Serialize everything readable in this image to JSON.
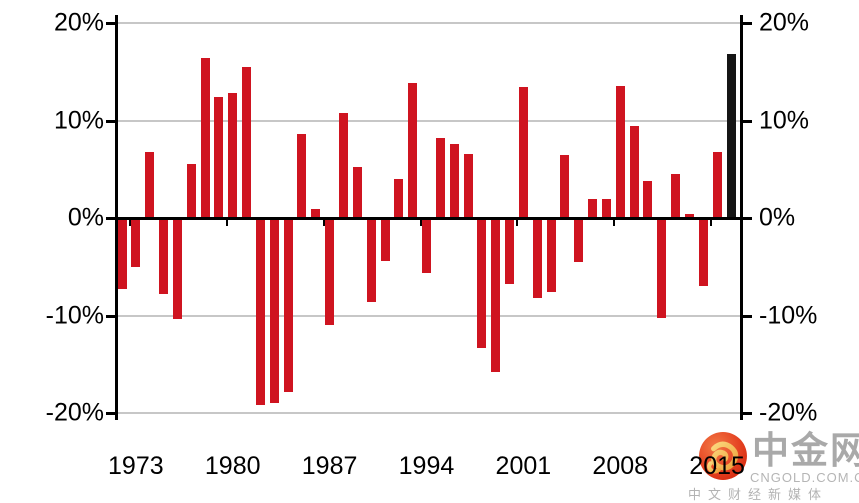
{
  "chart_data": {
    "type": "bar",
    "title": "",
    "xlabel": "",
    "ylabel": "",
    "years": [
      1972,
      1973,
      1974,
      1975,
      1976,
      1977,
      1978,
      1979,
      1980,
      1981,
      1982,
      1983,
      1984,
      1985,
      1986,
      1987,
      1988,
      1989,
      1990,
      1991,
      1992,
      1993,
      1994,
      1995,
      1996,
      1997,
      1998,
      1999,
      2000,
      2001,
      2002,
      2003,
      2004,
      2005,
      2006,
      2007,
      2008,
      2009,
      2010,
      2011,
      2012,
      2013,
      2014,
      2015,
      2016
    ],
    "values": [
      -7.3,
      -5.0,
      6.8,
      -7.8,
      -10.4,
      5.5,
      16.4,
      12.4,
      12.8,
      15.5,
      -19.2,
      -19.0,
      -17.8,
      8.6,
      0.9,
      -11.0,
      10.8,
      5.2,
      -8.6,
      -4.4,
      4.0,
      13.8,
      -5.6,
      8.2,
      7.6,
      6.6,
      -13.3,
      -15.8,
      -6.8,
      13.4,
      -8.2,
      -7.6,
      6.5,
      -4.5,
      2.0,
      2.0,
      13.5,
      9.4,
      3.8,
      -10.3,
      4.5,
      0.4,
      -7.0,
      6.8,
      16.8
    ],
    "highlight_index": 44,
    "ylim": [
      -20.8,
      20.8
    ],
    "grid": true,
    "legend_position": "none",
    "ytick_values": [
      20,
      10,
      0,
      -10,
      -20
    ],
    "ytick_labels": [
      "20%",
      "10%",
      "0%",
      "-10%",
      "-20%"
    ],
    "xtick_labels": [
      "1973",
      "1980",
      "1987",
      "1994",
      "2001",
      "2008",
      "2015"
    ],
    "colors": {
      "bar": "#cf1420",
      "highlight_bar": "#151515",
      "gridline": "#c7c7c7",
      "axis": "#000000",
      "tick_label": "#000000"
    }
  },
  "watermark": {
    "brand": "中金网",
    "domain": "CNGOLD.COM.CN",
    "tagline": "中文财经新媒体",
    "logo_icon": "gold-cloud-swirl-icon",
    "colors": {
      "circle_top": "#ef6136",
      "circle_bottom": "#d6290f",
      "swirl_light": "#fbd67c",
      "swirl_dark": "#eda43c",
      "text_gray": "#a9a9a9"
    }
  }
}
